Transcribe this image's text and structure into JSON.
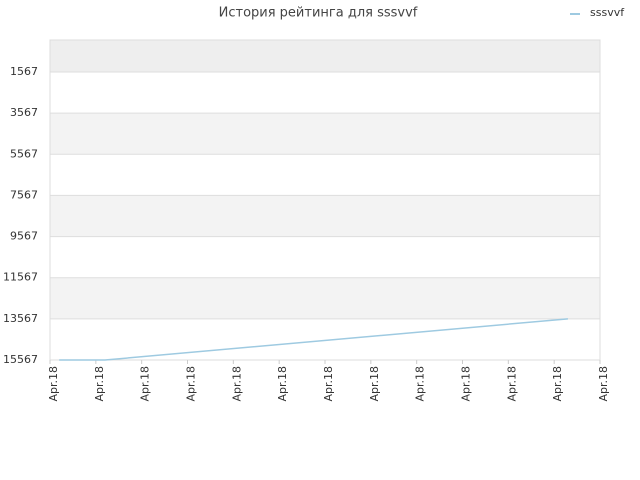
{
  "chart_data": {
    "type": "line",
    "title": "История рейтинга для sssvvf",
    "x": [
      0.2,
      1.2,
      11.3
    ],
    "series": [
      {
        "name": "sssvvf",
        "color": "#9ecae1",
        "values": [
          15567,
          15567,
          13567
        ]
      }
    ],
    "xlim": [
      0,
      12
    ],
    "xticks": [
      {
        "value": 0,
        "label": "Apr.18"
      },
      {
        "value": 1,
        "label": "Apr.18"
      },
      {
        "value": 2,
        "label": "Apr.18"
      },
      {
        "value": 3,
        "label": "Apr.18"
      },
      {
        "value": 4,
        "label": "Apr.18"
      },
      {
        "value": 5,
        "label": "Apr.18"
      },
      {
        "value": 6,
        "label": "Apr.18"
      },
      {
        "value": 7,
        "label": "Apr.18"
      },
      {
        "value": 8,
        "label": "Apr.18"
      },
      {
        "value": 9,
        "label": "Apr.18"
      },
      {
        "value": 10,
        "label": "Apr.18"
      },
      {
        "value": 11,
        "label": "Apr.18"
      },
      {
        "value": 12,
        "label": "Apr.18"
      }
    ],
    "ylim": [
      15567,
      11
    ],
    "yticks": [
      15567,
      13567,
      11567,
      9567,
      7567,
      5567,
      3567,
      1567
    ],
    "grid": true,
    "legend": "top-right"
  }
}
